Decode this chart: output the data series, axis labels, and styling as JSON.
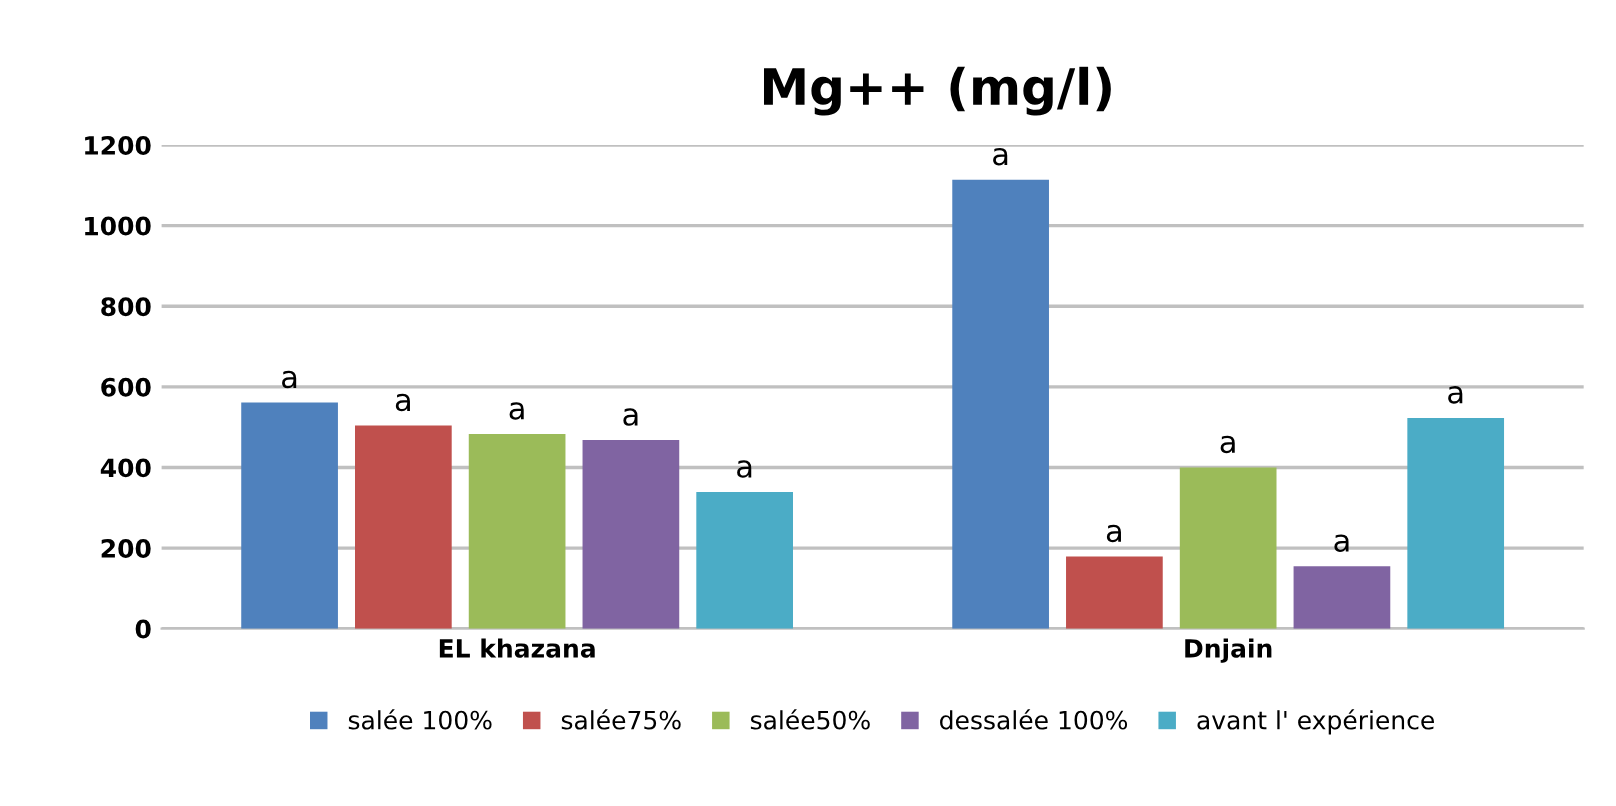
{
  "chart_data": {
    "type": "bar",
    "title": "Mg++ (mg/l)",
    "categories": [
      "EL khazana",
      "Dnjain"
    ],
    "series": [
      {
        "name": "salée 100%",
        "color": "#4f81bd",
        "values": [
          561,
          1114
        ],
        "value_labels": [
          "a",
          "a"
        ]
      },
      {
        "name": "salée75%",
        "color": "#c0504d",
        "values": [
          504,
          179
        ],
        "value_labels": [
          "a",
          "a"
        ]
      },
      {
        "name": "salée50%",
        "color": "#9bbb59",
        "values": [
          483,
          400
        ],
        "value_labels": [
          "a",
          "a"
        ]
      },
      {
        "name": "dessalée 100%",
        "color": "#8064a2",
        "values": [
          468,
          155
        ],
        "value_labels": [
          "a",
          "a"
        ]
      },
      {
        "name": "avant l' expérience",
        "color": "#4bacc6",
        "values": [
          339,
          523
        ],
        "value_labels": [
          "a",
          "a"
        ]
      }
    ],
    "ylim": [
      0,
      1200
    ],
    "yticks": [
      0,
      200,
      400,
      600,
      800,
      1000,
      1200
    ],
    "grid": "y",
    "legend": "bottom"
  }
}
